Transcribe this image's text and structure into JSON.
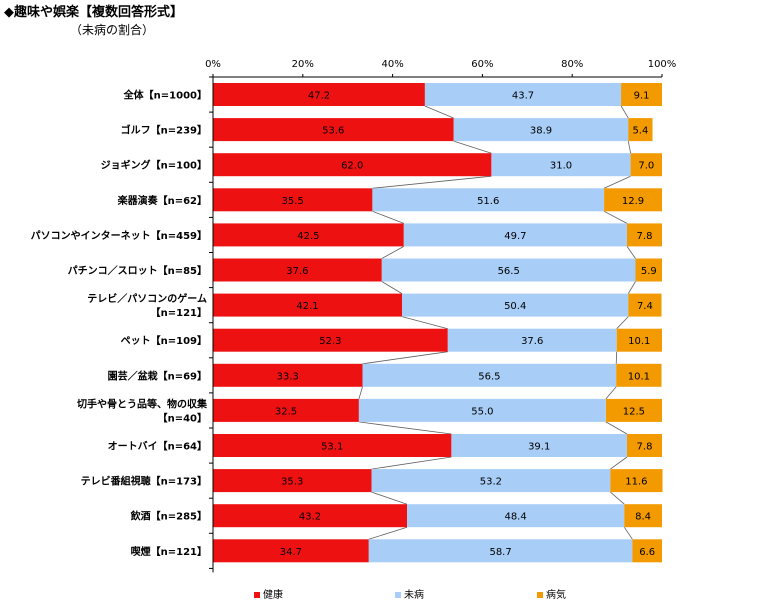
{
  "header": {
    "title": "◆趣味や娯楽【複数回答形式】",
    "subtitle": "（未病の割合）"
  },
  "colors": {
    "health": "#ee1111",
    "mibyo": "#a8cdf6",
    "disease": "#f29a00",
    "axis": "#000000",
    "connector": "#606060"
  },
  "chart_data": {
    "type": "bar",
    "orientation": "horizontal-stacked-100",
    "title": "",
    "xlabel": "",
    "ylabel": "",
    "xlim": [
      0,
      100
    ],
    "ticks": [
      "0%",
      "20%",
      "40%",
      "60%",
      "80%",
      "100%"
    ],
    "tick_values": [
      0,
      20,
      40,
      60,
      80,
      100
    ],
    "categories": [
      [
        "全体【n=1000】"
      ],
      [
        "ゴルフ【n=239】"
      ],
      [
        "ジョギング【n=100】"
      ],
      [
        "楽器演奏【n=62】"
      ],
      [
        "パソコンやインターネット【n=459】"
      ],
      [
        "パチンコ／スロット【n=85】"
      ],
      [
        "テレビ／パソコンのゲーム",
        "【n=121】"
      ],
      [
        "ペット【n=109】"
      ],
      [
        "園芸／盆栽【n=69】"
      ],
      [
        "切手や骨とう品等、物の収集",
        "【n=40】"
      ],
      [
        "オートバイ【n=64】"
      ],
      [
        "テレビ番組視聴【n=173】"
      ],
      [
        "飲酒【n=285】"
      ],
      [
        "喫煙【n=121】"
      ]
    ],
    "series": [
      {
        "name": "健康",
        "values": [
          47.2,
          53.6,
          62.0,
          35.5,
          42.5,
          37.6,
          42.1,
          52.3,
          33.3,
          32.5,
          53.1,
          35.3,
          43.2,
          34.7
        ]
      },
      {
        "name": "未病",
        "values": [
          43.7,
          38.9,
          31.0,
          51.6,
          49.7,
          56.5,
          50.4,
          37.6,
          56.5,
          55.0,
          39.1,
          53.2,
          48.4,
          58.7
        ]
      },
      {
        "name": "病気",
        "values": [
          9.1,
          5.4,
          7.0,
          12.9,
          7.8,
          5.9,
          7.4,
          10.1,
          10.1,
          12.5,
          7.8,
          11.6,
          8.4,
          6.6
        ]
      }
    ],
    "legend_position": "bottom",
    "grid": false,
    "series_lines": true
  }
}
